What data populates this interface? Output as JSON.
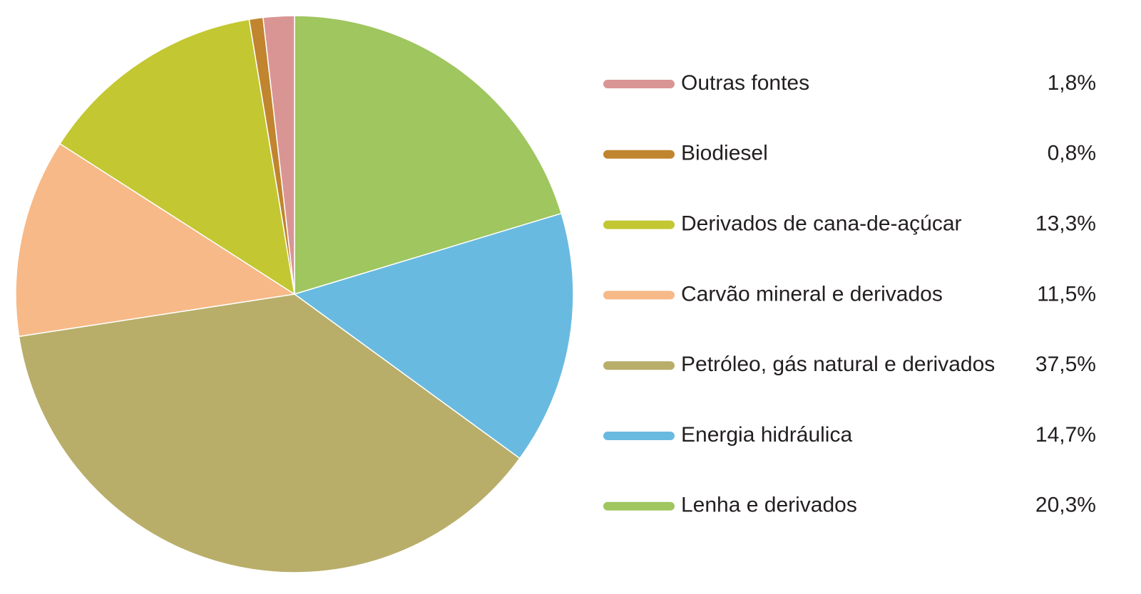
{
  "chart_data": {
    "type": "pie",
    "categories": [
      "Outras fontes",
      "Biodiesel",
      "Derivados de cana-de-açúcar",
      "Carvão mineral e derivados",
      "Petróleo, gás natural e derivados",
      "Energia hidráulica",
      "Lenha e derivados"
    ],
    "values": [
      1.8,
      0.8,
      13.3,
      11.5,
      37.5,
      14.7,
      20.3
    ],
    "value_labels": [
      "1,8%",
      "0,8%",
      "13,3%",
      "11,5%",
      "37,5%",
      "14,7%",
      "20,3%"
    ],
    "colors": [
      "#d99594",
      "#c0852e",
      "#c3c731",
      "#f7b987",
      "#b8ae6a",
      "#69bae0",
      "#9fc65f"
    ]
  }
}
